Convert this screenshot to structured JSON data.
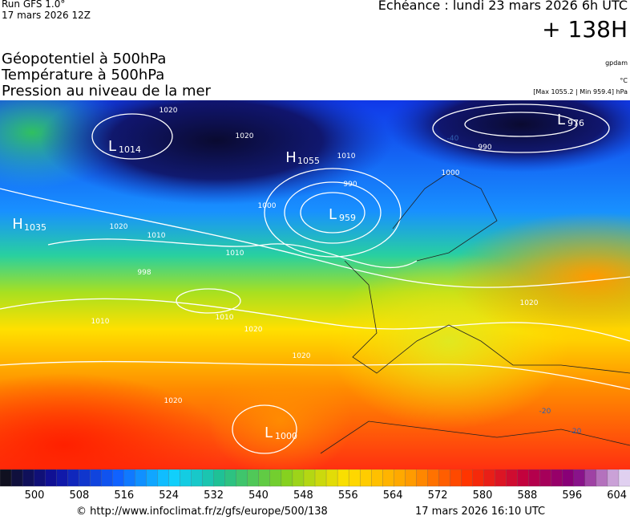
{
  "header": {
    "run": "Run GFS 1.0°",
    "run_date": "17 mars 2026 12Z",
    "valid": "Echéance : lundi 23 mars 2026 6h UTC",
    "lead": "+ 138H"
  },
  "fields": [
    "Géopotentiel à 500hPa",
    "Température à 500hPa",
    "Pression au niveau de la mer"
  ],
  "units": [
    "gpdam",
    "°C",
    "[Max 1055.2 | Min 959.4] hPa"
  ],
  "map": {
    "pressure_centers": [
      {
        "letter": "L",
        "value": 1014
      },
      {
        "letter": "H",
        "value": 1055
      },
      {
        "letter": "L",
        "value": 959
      },
      {
        "letter": "L",
        "value": 976
      },
      {
        "letter": "H",
        "value": 1035
      },
      {
        "letter": "L",
        "value": 1000
      }
    ],
    "contour_labels": [
      1020,
      1020,
      1010,
      990,
      1000,
      1010,
      1010,
      1020,
      990,
      1020,
      1010,
      1020,
      1020,
      1020,
      1010,
      998,
      1000
    ],
    "temperature_labels": [
      -40,
      -20,
      -20
    ]
  },
  "colorbar": {
    "labels": [
      500,
      508,
      516,
      524,
      532,
      540,
      548,
      556,
      564,
      572,
      580,
      588,
      596,
      604
    ]
  },
  "footer": {
    "source": "© http://www.infoclimat.fr/z/gfs/europe/500/138",
    "generated": "17 mars 2026 16:10 UTC"
  }
}
